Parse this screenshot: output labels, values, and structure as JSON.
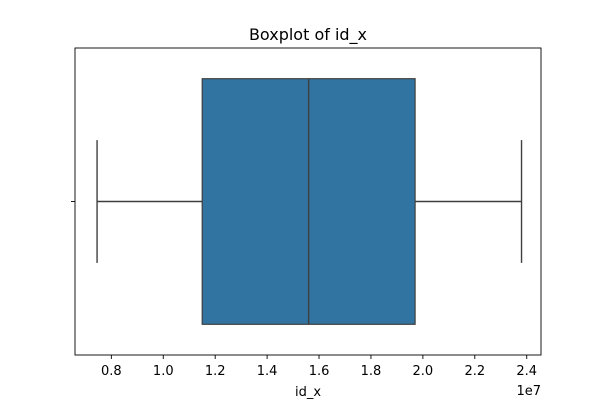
{
  "chart_data": {
    "type": "boxplot",
    "title": "Boxplot of id_x",
    "xlabel": "id_x",
    "ylabel": "",
    "orientation": "horizontal",
    "scale_exponent_label": "1e7",
    "xlim": [
      0.66,
      2.455
    ],
    "x_ticks": [
      0.8,
      1.0,
      1.2,
      1.4,
      1.6,
      1.8,
      2.0,
      2.2,
      2.4
    ],
    "x_tick_labels": [
      "0.8",
      "1.0",
      "1.2",
      "1.4",
      "1.6",
      "1.8",
      "2.0",
      "2.2",
      "2.4"
    ],
    "grid": false,
    "legend": "none",
    "boxes": [
      {
        "whisker_low": 0.745,
        "q1": 1.15,
        "median": 1.56,
        "q3": 1.97,
        "whisker_high": 2.38
      }
    ],
    "colors": {
      "box_fill": "#3274a1",
      "box_edge": "#3f3f3f",
      "axes": "#000000"
    }
  }
}
